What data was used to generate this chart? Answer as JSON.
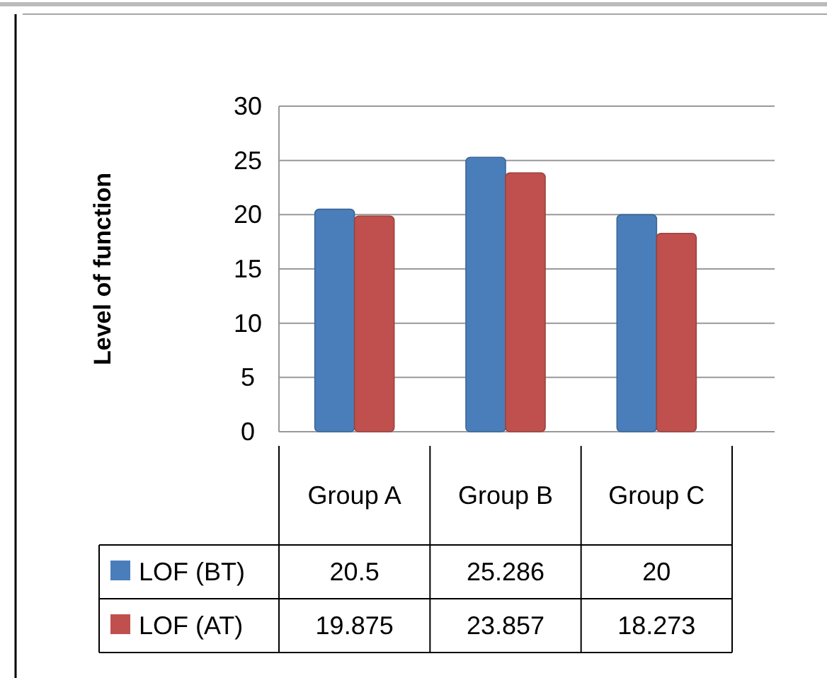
{
  "chart_data": {
    "type": "bar",
    "ylabel": "Level of function",
    "categories": [
      "Group A",
      "Group B",
      "Group C"
    ],
    "series": [
      {
        "name": "LOF (BT)",
        "color": "#4a7ebb",
        "values": [
          20.5,
          25.286,
          20
        ]
      },
      {
        "name": "LOF (AT)",
        "color": "#c0504d",
        "values": [
          19.875,
          23.857,
          18.273
        ]
      }
    ],
    "ylim": [
      0,
      30
    ],
    "yticks": [
      0,
      5,
      10,
      15,
      20,
      25,
      30
    ],
    "grid": "y",
    "legend": "bottom left",
    "data_labels": true
  }
}
